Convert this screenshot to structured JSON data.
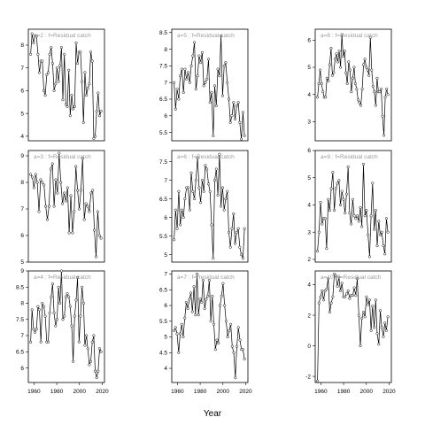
{
  "figure": {
    "xlabel": "Year"
  },
  "chart_data": [
    {
      "type": "line",
      "title": "a=2 : f=Residual catch",
      "xlim": [
        1955,
        2022
      ],
      "ylim": [
        3.8,
        8.7
      ],
      "yticks": [
        4,
        5,
        6,
        7,
        8
      ],
      "xticks": [],
      "series": [
        {
          "values": [
            7.6,
            8.5,
            8.1,
            8.4,
            8.4,
            7.6,
            6.8,
            7.3,
            7.3,
            6.0,
            5.8,
            6.7,
            6.8,
            7.6,
            7.9,
            7.2,
            6.0,
            6.3,
            7.0,
            6.4,
            7.1,
            7.9,
            5.6,
            7.6,
            5.4,
            5.3,
            6.9,
            4.9,
            5.8,
            5.2,
            5.3,
            8.1,
            7.2,
            7.7,
            7.7,
            6.4,
            4.6,
            6.8,
            5.8,
            6.1,
            6.3,
            7.7,
            7.3,
            3.9,
            4.0,
            5.1,
            5.9,
            4.9,
            5.1
          ]
        }
      ]
    },
    {
      "type": "line",
      "title": "a=5 : f=Residual catch",
      "xlim": [
        1955,
        2022
      ],
      "ylim": [
        5.25,
        8.6
      ],
      "yticks": [
        5.5,
        6.0,
        6.5,
        7.0,
        7.5,
        8.0,
        8.5
      ],
      "xticks": [],
      "series": [
        {
          "values": [
            7.0,
            6.2,
            6.8,
            6.5,
            7.2,
            7.4,
            6.7,
            7.4,
            7.1,
            7.3,
            7.0,
            7.5,
            7.8,
            8.2,
            6.8,
            7.2,
            7.8,
            7.6,
            7.9,
            6.9,
            7.0,
            7.1,
            7.7,
            6.4,
            6.7,
            5.4,
            6.9,
            6.3,
            7.4,
            7.2,
            8.4,
            6.6,
            7.5,
            7.6,
            7.0,
            6.5,
            5.8,
            6.0,
            6.4,
            5.9,
            6.3,
            6.4,
            5.8,
            5.3,
            6.1,
            5.4
          ]
        }
      ]
    },
    {
      "type": "line",
      "title": "a=8 : f=Residual catch",
      "xlim": [
        1955,
        2022
      ],
      "ylim": [
        2.3,
        6.4
      ],
      "yticks": [
        3,
        4,
        5,
        6
      ],
      "xticks": [],
      "series": [
        {
          "values": [
            3.9,
            4.4,
            4.9,
            4.4,
            4.1,
            3.9,
            3.9,
            4.6,
            4.5,
            5.1,
            5.7,
            4.7,
            4.8,
            5.3,
            5.5,
            5.2,
            5.6,
            5.0,
            6.2,
            5.4,
            5.6,
            4.8,
            4.4,
            5.2,
            4.9,
            4.1,
            4.6,
            5.0,
            4.4,
            4.2,
            3.8,
            3.7,
            3.6,
            4.2,
            5.1,
            5.3,
            5.0,
            4.9,
            4.7,
            6.1,
            4.9,
            4.3,
            4.1,
            3.6,
            4.6,
            4.1,
            4.1,
            4.2,
            3.2,
            2.5,
            3.9,
            4.2,
            4.0
          ]
        }
      ]
    },
    {
      "type": "line",
      "title": "a=3 : f=Residual catch",
      "xlim": [
        1955,
        2022
      ],
      "ylim": [
        5.0,
        9.2
      ],
      "yticks": [
        5,
        6,
        7,
        8,
        9
      ],
      "xticks": [],
      "series": [
        {
          "values": [
            8.3,
            8.2,
            7.8,
            8.3,
            8.0,
            6.9,
            8.1,
            8.0,
            7.9,
            7.1,
            6.6,
            7.1,
            8.5,
            8.7,
            7.1,
            8.1,
            7.6,
            9.1,
            8.0,
            7.2,
            7.6,
            7.3,
            7.8,
            6.1,
            7.5,
            6.1,
            6.9,
            8.6,
            7.7,
            7.0,
            7.7,
            8.9,
            6.6,
            7.2,
            7.1,
            6.9,
            7.6,
            7.7,
            6.2,
            5.2,
            6.9,
            6.0,
            5.9
          ]
        }
      ]
    },
    {
      "type": "line",
      "title": "a=6 : f=Residual catch",
      "xlim": [
        1955,
        2022
      ],
      "ylim": [
        4.8,
        7.8
      ],
      "yticks": [
        5.0,
        5.5,
        6.0,
        6.5,
        7.0,
        7.5
      ],
      "xticks": [],
      "series": [
        {
          "values": [
            5.4,
            6.2,
            5.7,
            6.7,
            5.8,
            6.2,
            6.0,
            6.5,
            6.8,
            6.8,
            6.2,
            7.2,
            6.7,
            6.5,
            7.0,
            7.6,
            6.8,
            6.4,
            7.0,
            6.7,
            7.4,
            7.3,
            6.9,
            6.7,
            5.8,
            4.9,
            7.0,
            7.3,
            6.6,
            7.7,
            6.3,
            6.8,
            6.2,
            6.5,
            6.7,
            5.6,
            5.2,
            5.7,
            6.1,
            5.3,
            5.6,
            5.7,
            5.2,
            5.0,
            4.9,
            5.7
          ]
        }
      ]
    },
    {
      "type": "line",
      "title": "a=9 : f=Residual catch",
      "xlim": [
        1955,
        2022
      ],
      "ylim": [
        1.9,
        6.0
      ],
      "yticks": [
        2,
        3,
        4,
        5,
        6
      ],
      "xticks": [],
      "series": [
        {
          "values": [
            2.3,
            3.0,
            4.1,
            3.3,
            3.5,
            3.5,
            2.4,
            4.2,
            3.8,
            4.6,
            5.2,
            3.8,
            4.6,
            4.8,
            4.9,
            4.0,
            4.5,
            4.2,
            3.7,
            4.4,
            5.4,
            3.7,
            3.3,
            4.2,
            3.6,
            3.5,
            3.6,
            3.4,
            3.9,
            3.2,
            5.5,
            3.6,
            3.8,
            2.9,
            2.1,
            3.6,
            4.8,
            3.1,
            3.8,
            2.5,
            3.4,
            2.9,
            3.0,
            2.5,
            2.2,
            3.5,
            3.0
          ]
        }
      ]
    },
    {
      "type": "line",
      "title": "a=4 : f=Residual catch",
      "xlim": [
        1955,
        2022
      ],
      "ylim": [
        5.55,
        9.0
      ],
      "yticks": [
        6.0,
        6.5,
        7.0,
        7.5,
        8.0,
        8.5,
        9.0
      ],
      "xticks": [
        1960,
        1980,
        2000,
        2020
      ],
      "series": [
        {
          "values": [
            6.8,
            7.8,
            7.2,
            7.1,
            7.2,
            7.9,
            7.8,
            6.8,
            8.0,
            7.9,
            7.6,
            6.8,
            6.8,
            7.7,
            8.2,
            8.6,
            7.7,
            7.3,
            7.5,
            8.5,
            8.0,
            9.0,
            7.5,
            7.6,
            8.2,
            8.3,
            8.2,
            7.9,
            7.3,
            6.2,
            7.6,
            8.1,
            8.8,
            6.8,
            7.6,
            8.5,
            8.0,
            6.7,
            7.0,
            6.6,
            6.1,
            6.2,
            6.8,
            7.0,
            5.9,
            5.7,
            5.9,
            6.6,
            6.5
          ]
        }
      ]
    },
    {
      "type": "line",
      "title": "a=7 : f=Residual catch",
      "xlim": [
        1955,
        2022
      ],
      "ylim": [
        3.55,
        7.1
      ],
      "yticks": [
        4.0,
        4.5,
        5.0,
        5.5,
        6.0,
        6.5,
        7.0
      ],
      "xticks": [
        1960,
        1980,
        2000,
        2020
      ],
      "series": [
        {
          "values": [
            5.2,
            5.3,
            5.1,
            4.5,
            5.1,
            5.4,
            5.0,
            5.6,
            6.1,
            5.9,
            6.2,
            6.4,
            5.8,
            6.6,
            5.7,
            7.0,
            5.7,
            6.2,
            6.1,
            6.8,
            5.9,
            6.2,
            6.3,
            6.8,
            5.5,
            6.3,
            5.4,
            4.6,
            4.9,
            4.8,
            6.0,
            6.3,
            6.7,
            6.0,
            5.5,
            5.0,
            5.2,
            5.4,
            4.7,
            4.5,
            3.7,
            4.7,
            5.3,
            4.9,
            4.6,
            4.6,
            4.3
          ]
        }
      ]
    },
    {
      "type": "line",
      "title": "a=10 : f=Residual catch",
      "xlim": [
        1955,
        2022
      ],
      "ylim": [
        -2.4,
        4.9
      ],
      "yticks": [
        -2,
        0,
        2,
        4
      ],
      "xticks": [
        1960,
        1980,
        2000,
        2020
      ],
      "series": [
        {
          "values": [
            -2.3,
            2.8,
            3.2,
            3.6,
            3.0,
            3.6,
            3.7,
            4.4,
            2.2,
            2.8,
            3.2,
            4.7,
            4.6,
            3.9,
            4.5,
            3.6,
            4.1,
            3.2,
            3.2,
            3.4,
            3.6,
            3.1,
            3.3,
            3.3,
            3.8,
            3.3,
            4.4,
            2.0,
            0.0,
            1.8,
            2.2,
            1.9,
            3.2,
            2.7,
            3.0,
            1.0,
            2.6,
            1.2,
            3.0,
            0.8,
            0.1,
            2.3,
            1.2,
            0.6,
            1.5,
            1.0,
            1.9
          ]
        }
      ]
    }
  ]
}
